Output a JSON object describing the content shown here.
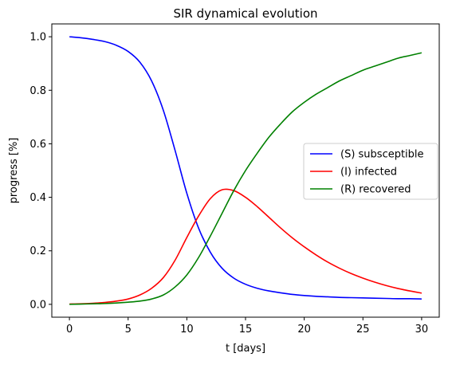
{
  "chart_data": {
    "type": "line",
    "title": "SIR dynamical evolution",
    "xlabel": "t [days]",
    "ylabel": "progress [%]",
    "xlim": [
      -1.5,
      31.5
    ],
    "ylim": [
      -0.048,
      1.048
    ],
    "xticks": [
      0,
      5,
      10,
      15,
      20,
      25,
      30
    ],
    "yticks": [
      0.0,
      0.2,
      0.4,
      0.6,
      0.8,
      1.0
    ],
    "xtick_labels": [
      "0",
      "5",
      "10",
      "15",
      "20",
      "25",
      "30"
    ],
    "ytick_labels": [
      "0.0",
      "0.2",
      "0.4",
      "0.6",
      "0.8",
      "1.0"
    ],
    "grid": false,
    "legend_position": "center-right",
    "x": [
      0,
      1,
      2,
      3,
      4,
      5,
      6,
      7,
      8,
      9,
      10,
      11,
      12,
      13,
      14,
      15,
      16,
      17,
      18,
      19,
      20,
      21,
      22,
      23,
      24,
      25,
      26,
      27,
      28,
      29,
      30
    ],
    "series": [
      {
        "name": "(S) subsceptible",
        "color": "#0000ff",
        "values": [
          1.0,
          0.996,
          0.99,
          0.982,
          0.968,
          0.945,
          0.905,
          0.835,
          0.725,
          0.575,
          0.415,
          0.285,
          0.195,
          0.135,
          0.098,
          0.075,
          0.06,
          0.05,
          0.043,
          0.037,
          0.033,
          0.03,
          0.028,
          0.026,
          0.025,
          0.024,
          0.023,
          0.022,
          0.021,
          0.021,
          0.02
        ]
      },
      {
        "name": "(I) infected",
        "color": "#ff0000",
        "values": [
          0.001,
          0.002,
          0.004,
          0.007,
          0.012,
          0.02,
          0.035,
          0.06,
          0.1,
          0.165,
          0.25,
          0.33,
          0.395,
          0.428,
          0.425,
          0.4,
          0.365,
          0.325,
          0.285,
          0.248,
          0.215,
          0.185,
          0.158,
          0.135,
          0.115,
          0.098,
          0.083,
          0.07,
          0.059,
          0.05,
          0.042
        ]
      },
      {
        "name": "(R) recovered",
        "color": "#008000",
        "values": [
          0.0,
          0.001,
          0.002,
          0.003,
          0.005,
          0.008,
          0.012,
          0.02,
          0.035,
          0.065,
          0.11,
          0.175,
          0.255,
          0.34,
          0.425,
          0.5,
          0.565,
          0.625,
          0.675,
          0.72,
          0.755,
          0.785,
          0.81,
          0.835,
          0.855,
          0.875,
          0.89,
          0.905,
          0.92,
          0.93,
          0.94
        ]
      }
    ]
  }
}
